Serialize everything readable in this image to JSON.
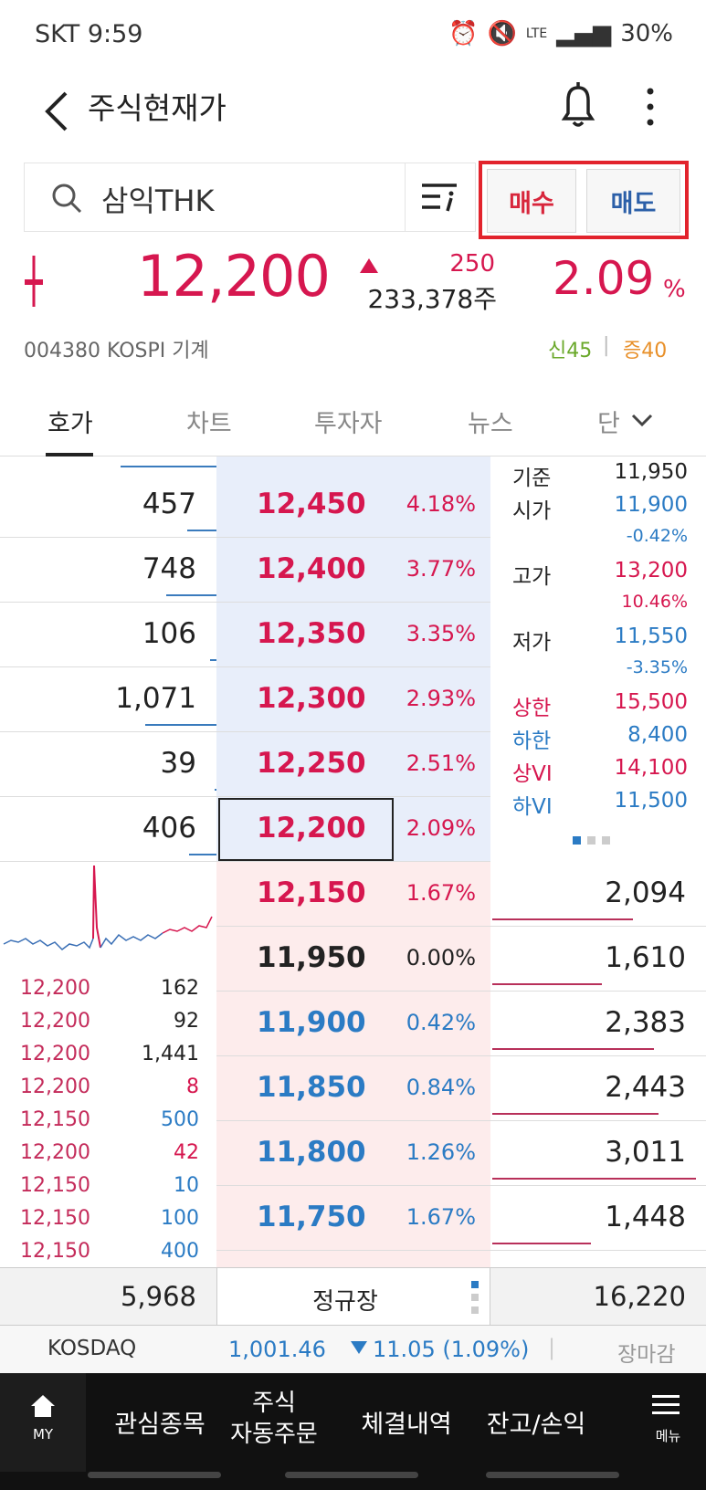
{
  "status_bar": {
    "carrier_time": "SKT  9:59",
    "network": "LTE",
    "battery": "30%"
  },
  "header": {
    "title": "주식현재가"
  },
  "search": {
    "stock_name": "삼익THK"
  },
  "trade_buttons": {
    "buy": "매수",
    "sell": "매도"
  },
  "quote": {
    "price": "12,200",
    "change": "250",
    "volume": "233,378주",
    "change_pct": "2.09",
    "pct_sign": "%"
  },
  "info": {
    "code_market_sector": "004380  KOSPI  기계",
    "credit": "신45",
    "separator": "|",
    "margin": "증40"
  },
  "tabs": [
    "호가",
    "차트",
    "투자자",
    "뉴스",
    "단"
  ],
  "order_book": {
    "asks": [
      {
        "qty": "457",
        "price": "12,450",
        "rate": "4.18%",
        "bar": 0.14
      },
      {
        "qty": "748",
        "price": "12,400",
        "rate": "3.77%",
        "bar": 0.24
      },
      {
        "qty": "106",
        "price": "12,350",
        "rate": "3.35%",
        "bar": 0.03
      },
      {
        "qty": "1,071",
        "price": "12,300",
        "rate": "2.93%",
        "bar": 0.34
      },
      {
        "qty": "39",
        "price": "12,250",
        "rate": "2.51%",
        "bar": 0.01
      },
      {
        "qty": "406",
        "price": "12,200",
        "rate": "2.09%",
        "bar": 0.13
      }
    ],
    "bids": [
      {
        "qty": "2,094",
        "price": "12,150",
        "rate": "1.67%",
        "bar": 0.67
      },
      {
        "qty": "1,610",
        "price": "11,950",
        "rate": "0.00%",
        "bar": 0.52
      },
      {
        "qty": "2,383",
        "price": "11,900",
        "rate": "0.42%",
        "bar": 0.77
      },
      {
        "qty": "2,443",
        "price": "11,850",
        "rate": "0.84%",
        "bar": 0.79
      },
      {
        "qty": "3,011",
        "price": "11,800",
        "rate": "1.26%",
        "bar": 0.97
      },
      {
        "qty": "1,448",
        "price": "11,750",
        "rate": "1.67%",
        "bar": 0.47
      }
    ],
    "ask_total": "5,968",
    "session": "정규장",
    "bid_total": "16,220"
  },
  "stats": {
    "base_label": "기준",
    "base": "11,950",
    "open_label": "시가",
    "open": "11,900",
    "open_pct": "-0.42%",
    "high_label": "고가",
    "high": "13,200",
    "high_pct": "10.46%",
    "low_label": "저가",
    "low": "11,550",
    "low_pct": "-3.35%",
    "upper_label": "상한",
    "upper": "15,500",
    "lower_label": "하한",
    "lower": "8,400",
    "uvi_label": "상VI",
    "uvi": "14,100",
    "lvi_label": "하VI",
    "lvi": "11,500"
  },
  "trades": [
    {
      "price": "12,200",
      "vol": "162",
      "side": "neutral"
    },
    {
      "price": "12,200",
      "vol": "92",
      "side": "neutral"
    },
    {
      "price": "12,200",
      "vol": "1,441",
      "side": "neutral"
    },
    {
      "price": "12,200",
      "vol": "8",
      "side": "buy"
    },
    {
      "price": "12,150",
      "vol": "500",
      "side": "sell"
    },
    {
      "price": "12,200",
      "vol": "42",
      "side": "buy"
    },
    {
      "price": "12,150",
      "vol": "10",
      "side": "sell"
    },
    {
      "price": "12,150",
      "vol": "100",
      "side": "sell"
    },
    {
      "price": "12,150",
      "vol": "400",
      "side": "sell"
    }
  ],
  "index": {
    "name": "KOSDAQ",
    "value": "1,001.46",
    "change": "11.05 (1.09%)",
    "separator": "|",
    "status": "장마감"
  },
  "nav": {
    "my": "MY",
    "watchlist": "관심종목",
    "auto_line1": "주식",
    "auto_line2": "자동주문",
    "executions": "체결내역",
    "balance": "잔고/손익",
    "menu": "메뉴"
  },
  "colors": {
    "up": "#d6174f",
    "down": "#2b7bc4",
    "highlight": "#e2232c"
  }
}
